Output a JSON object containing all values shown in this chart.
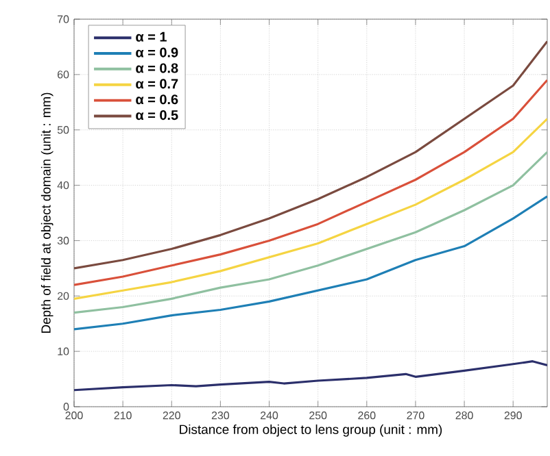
{
  "chart_data": {
    "type": "line",
    "xlabel": "Distance from object to lens group (unit : mm)",
    "ylabel": "Depth of field at object domain  (unit : mm)",
    "x": [
      200,
      210,
      220,
      230,
      240,
      250,
      260,
      270,
      280,
      290,
      297
    ],
    "series": [
      {
        "name": "α = 1",
        "color": "#2b2f6b",
        "x": [
          200,
          210,
          220,
          225,
          230,
          240,
          243,
          250,
          260,
          268,
          270,
          280,
          290,
          294,
          297
        ],
        "values": [
          3,
          3.5,
          3.9,
          3.7,
          4,
          4.5,
          4.2,
          4.7,
          5.2,
          5.9,
          5.4,
          6.5,
          7.7,
          8.2,
          7.5
        ]
      },
      {
        "name": "α = 0.9",
        "color": "#1e7fb5",
        "values": [
          14,
          15,
          16.5,
          17.5,
          19,
          21,
          23,
          26.5,
          29,
          34,
          38
        ]
      },
      {
        "name": "α = 0.8",
        "color": "#8fc0a0",
        "values": [
          17,
          18,
          19.5,
          21.5,
          23,
          25.5,
          28.5,
          31.5,
          35.5,
          40,
          46
        ]
      },
      {
        "name": "α = 0.7",
        "color": "#f5d442",
        "values": [
          19.5,
          21,
          22.5,
          24.5,
          27,
          29.5,
          33,
          36.5,
          41,
          46,
          52
        ]
      },
      {
        "name": "α = 0.6",
        "color": "#d9503a",
        "values": [
          22,
          23.5,
          25.5,
          27.5,
          30,
          33,
          37,
          41,
          46,
          52,
          59
        ]
      },
      {
        "name": "α = 0.5",
        "color": "#7a4a3f",
        "values": [
          25,
          26.5,
          28.5,
          31,
          34,
          37.5,
          41.5,
          46,
          52,
          58,
          66
        ]
      }
    ],
    "xlim": [
      200,
      297
    ],
    "ylim": [
      0,
      70
    ],
    "xticks": [
      200,
      210,
      220,
      230,
      240,
      250,
      260,
      270,
      280,
      290
    ],
    "yticks": [
      0,
      10,
      20,
      30,
      40,
      50,
      60,
      70
    ],
    "grid": true,
    "legend": "top left",
    "line_style": "solid",
    "marker": "none"
  }
}
